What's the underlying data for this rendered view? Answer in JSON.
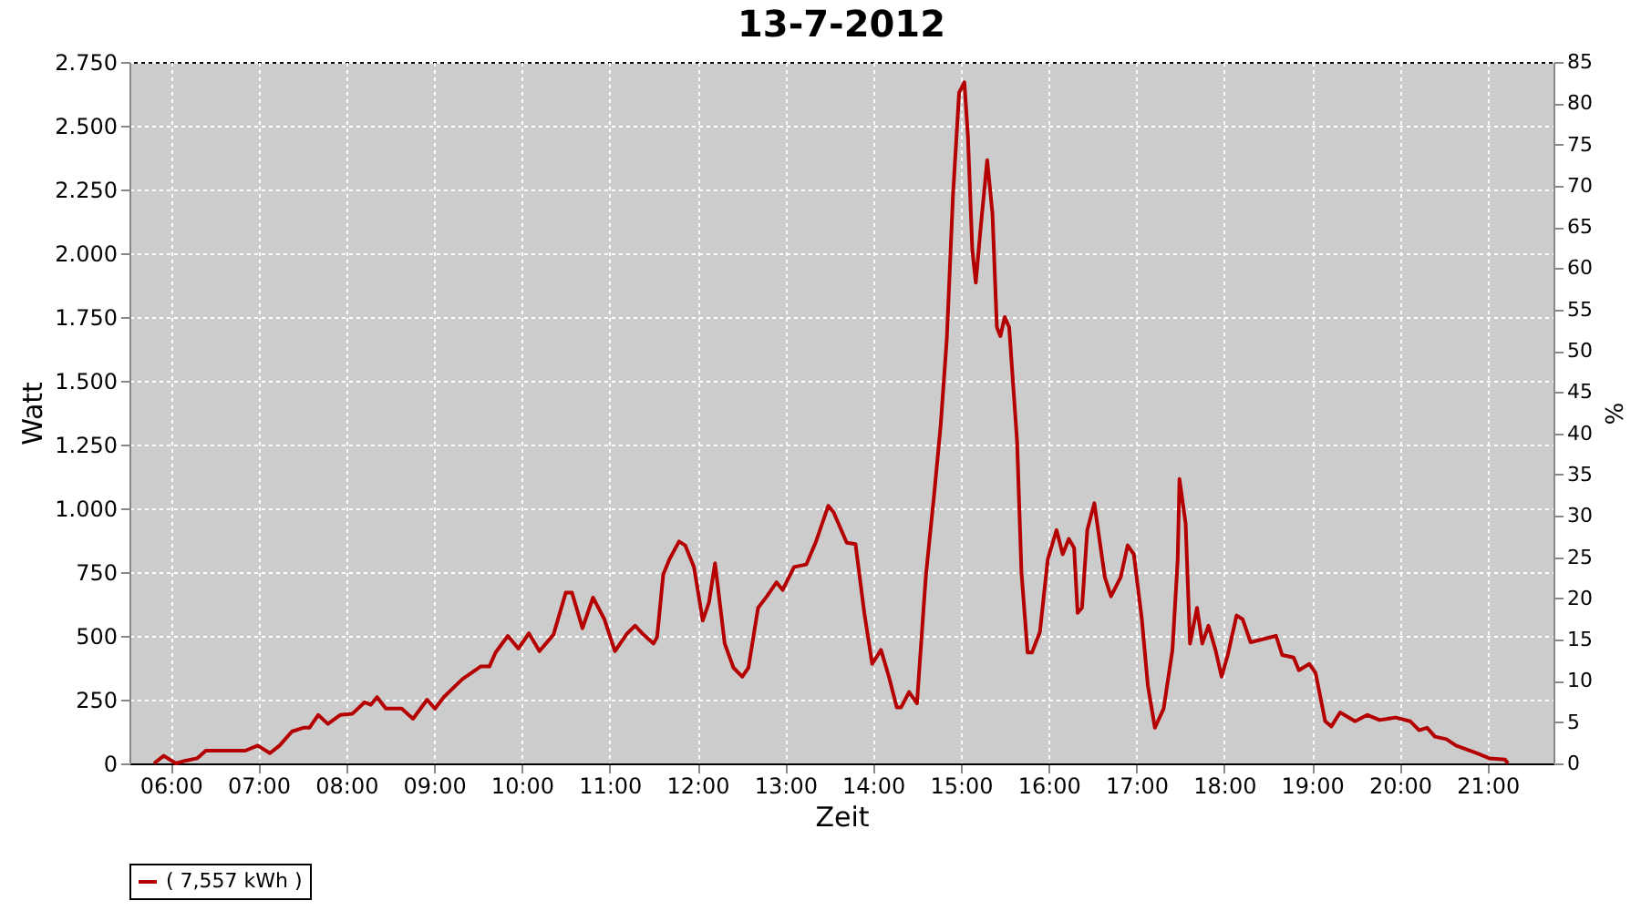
{
  "chart_data": {
    "type": "line",
    "title": "13-7-2012",
    "xlabel": "Zeit",
    "ylabel": "Watt",
    "y2label": "%",
    "x": [
      5.81,
      5.92,
      6.06,
      6.16,
      6.3,
      6.4,
      6.85,
      6.99,
      7.13,
      7.24,
      7.38,
      7.51,
      7.58,
      7.68,
      7.79,
      7.93,
      8.07,
      8.21,
      8.28,
      8.35,
      8.45,
      8.63,
      8.76,
      8.92,
      9.01,
      9.11,
      9.32,
      9.53,
      9.63,
      9.7,
      9.84,
      9.96,
      10.08,
      10.2,
      10.36,
      10.5,
      10.57,
      10.69,
      10.81,
      10.94,
      11.06,
      11.2,
      11.29,
      11.37,
      11.5,
      11.54,
      11.61,
      11.68,
      11.79,
      11.86,
      11.96,
      12.06,
      12.13,
      12.2,
      12.31,
      12.41,
      12.51,
      12.58,
      12.69,
      12.79,
      12.9,
      12.97,
      13.1,
      13.24,
      13.35,
      13.49,
      13.55,
      13.7,
      13.8,
      13.9,
      13.99,
      14.09,
      14.18,
      14.27,
      14.32,
      14.41,
      14.5,
      14.6,
      14.7,
      14.77,
      14.84,
      14.91,
      14.98,
      15.04,
      15.08,
      15.13,
      15.17,
      15.22,
      15.3,
      15.36,
      15.41,
      15.45,
      15.5,
      15.55,
      15.64,
      15.69,
      15.76,
      15.81,
      15.9,
      15.99,
      16.09,
      16.16,
      16.23,
      16.29,
      16.33,
      16.38,
      16.44,
      16.52,
      16.64,
      16.71,
      16.82,
      16.9,
      16.97,
      17.06,
      17.13,
      17.21,
      17.31,
      17.41,
      17.47,
      17.49,
      17.56,
      17.61,
      17.69,
      17.75,
      17.82,
      17.9,
      17.97,
      18.04,
      18.14,
      18.21,
      18.3,
      18.59,
      18.66,
      18.79,
      18.85,
      18.97,
      19.04,
      19.15,
      19.22,
      19.32,
      19.49,
      19.63,
      19.77,
      19.95,
      20.12,
      20.22,
      20.31,
      20.4,
      20.53,
      20.64,
      20.88,
      21.02,
      21.2,
      21.23
    ],
    "series": [
      {
        "name": "( 7,557 kWh )",
        "color": "#b40000",
        "values": [
          0,
          30,
          0,
          10,
          20,
          50,
          50,
          70,
          40,
          70,
          125,
          140,
          140,
          190,
          155,
          190,
          195,
          240,
          230,
          260,
          215,
          215,
          175,
          250,
          215,
          260,
          330,
          380,
          380,
          435,
          500,
          450,
          510,
          440,
          505,
          670,
          670,
          530,
          650,
          565,
          440,
          510,
          540,
          510,
          470,
          495,
          740,
          800,
          870,
          855,
          770,
          560,
          630,
          785,
          470,
          375,
          340,
          375,
          610,
          655,
          710,
          680,
          770,
          780,
          870,
          1010,
          985,
          865,
          860,
          590,
          390,
          445,
          340,
          220,
          220,
          280,
          235,
          730,
          1070,
          1325,
          1665,
          2225,
          2630,
          2670,
          2460,
          2015,
          1885,
          2080,
          2365,
          2155,
          1710,
          1675,
          1750,
          1710,
          1265,
          750,
          435,
          435,
          515,
          800,
          915,
          820,
          880,
          845,
          590,
          610,
          915,
          1020,
          730,
          655,
          730,
          855,
          820,
          570,
          305,
          140,
          215,
          445,
          800,
          1115,
          940,
          470,
          610,
          470,
          540,
          445,
          340,
          425,
          580,
          565,
          475,
          500,
          425,
          415,
          365,
          390,
          355,
          165,
          145,
          200,
          165,
          190,
          170,
          180,
          165,
          130,
          140,
          105,
          95,
          70,
          40,
          20,
          15,
          0
        ]
      }
    ],
    "xlim": [
      5.53,
      21.75
    ],
    "xticks": [
      {
        "value": 6,
        "label": "06:00"
      },
      {
        "value": 7,
        "label": "07:00"
      },
      {
        "value": 8,
        "label": "08:00"
      },
      {
        "value": 9,
        "label": "09:00"
      },
      {
        "value": 10,
        "label": "10:00"
      },
      {
        "value": 11,
        "label": "11:00"
      },
      {
        "value": 12,
        "label": "12:00"
      },
      {
        "value": 13,
        "label": "13:00"
      },
      {
        "value": 14,
        "label": "14:00"
      },
      {
        "value": 15,
        "label": "15:00"
      },
      {
        "value": 16,
        "label": "16:00"
      },
      {
        "value": 17,
        "label": "17:00"
      },
      {
        "value": 18,
        "label": "18:00"
      },
      {
        "value": 19,
        "label": "19:00"
      },
      {
        "value": 20,
        "label": "20:00"
      },
      {
        "value": 21,
        "label": "21:00"
      }
    ],
    "ylim": [
      0,
      2750
    ],
    "yticks": [
      0,
      250,
      500,
      750,
      {
        "value": 1000,
        "label": "1.000"
      },
      {
        "value": 1250,
        "label": "1.250"
      },
      {
        "value": 1500,
        "label": "1.500"
      },
      {
        "value": 1750,
        "label": "1.750"
      },
      {
        "value": 2000,
        "label": "2.000"
      },
      {
        "value": 2250,
        "label": "2.250"
      },
      {
        "value": 2500,
        "label": "2.500"
      },
      {
        "value": 2750,
        "label": "2.750"
      }
    ],
    "y2lim": [
      0,
      85
    ],
    "y2ticks": [
      0,
      5,
      10,
      15,
      20,
      25,
      30,
      35,
      40,
      45,
      50,
      55,
      60,
      65,
      70,
      75,
      80,
      85
    ],
    "grid": true,
    "legend": "bottom",
    "marker": "none",
    "line_style": "solid"
  }
}
